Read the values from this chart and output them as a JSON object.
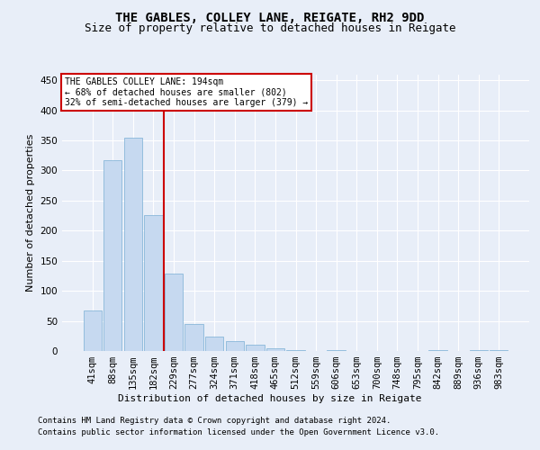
{
  "title": "THE GABLES, COLLEY LANE, REIGATE, RH2 9DD",
  "subtitle": "Size of property relative to detached houses in Reigate",
  "xlabel": "Distribution of detached houses by size in Reigate",
  "ylabel": "Number of detached properties",
  "footer1": "Contains HM Land Registry data © Crown copyright and database right 2024.",
  "footer2": "Contains public sector information licensed under the Open Government Licence v3.0.",
  "bar_labels": [
    "41sqm",
    "88sqm",
    "135sqm",
    "182sqm",
    "229sqm",
    "277sqm",
    "324sqm",
    "371sqm",
    "418sqm",
    "465sqm",
    "512sqm",
    "559sqm",
    "606sqm",
    "653sqm",
    "700sqm",
    "748sqm",
    "795sqm",
    "842sqm",
    "889sqm",
    "936sqm",
    "983sqm"
  ],
  "bar_values": [
    68,
    317,
    354,
    226,
    128,
    45,
    24,
    16,
    11,
    4,
    2,
    0,
    2,
    0,
    0,
    0,
    0,
    1,
    0,
    1,
    1
  ],
  "bar_color": "#c6d9f0",
  "bar_edge_color": "#7aafd4",
  "vline_x": 3.5,
  "vline_color": "#cc0000",
  "annotation_text": "THE GABLES COLLEY LANE: 194sqm\n← 68% of detached houses are smaller (802)\n32% of semi-detached houses are larger (379) →",
  "annotation_box_color": "#ffffff",
  "annotation_box_edge": "#cc0000",
  "ylim": [
    0,
    460
  ],
  "yticks": [
    0,
    50,
    100,
    150,
    200,
    250,
    300,
    350,
    400,
    450
  ],
  "bg_color": "#e8eef8",
  "axes_bg_color": "#e8eef8",
  "grid_color": "#ffffff",
  "title_fontsize": 10,
  "subtitle_fontsize": 9,
  "label_fontsize": 8,
  "tick_fontsize": 7.5,
  "footer_fontsize": 6.5
}
